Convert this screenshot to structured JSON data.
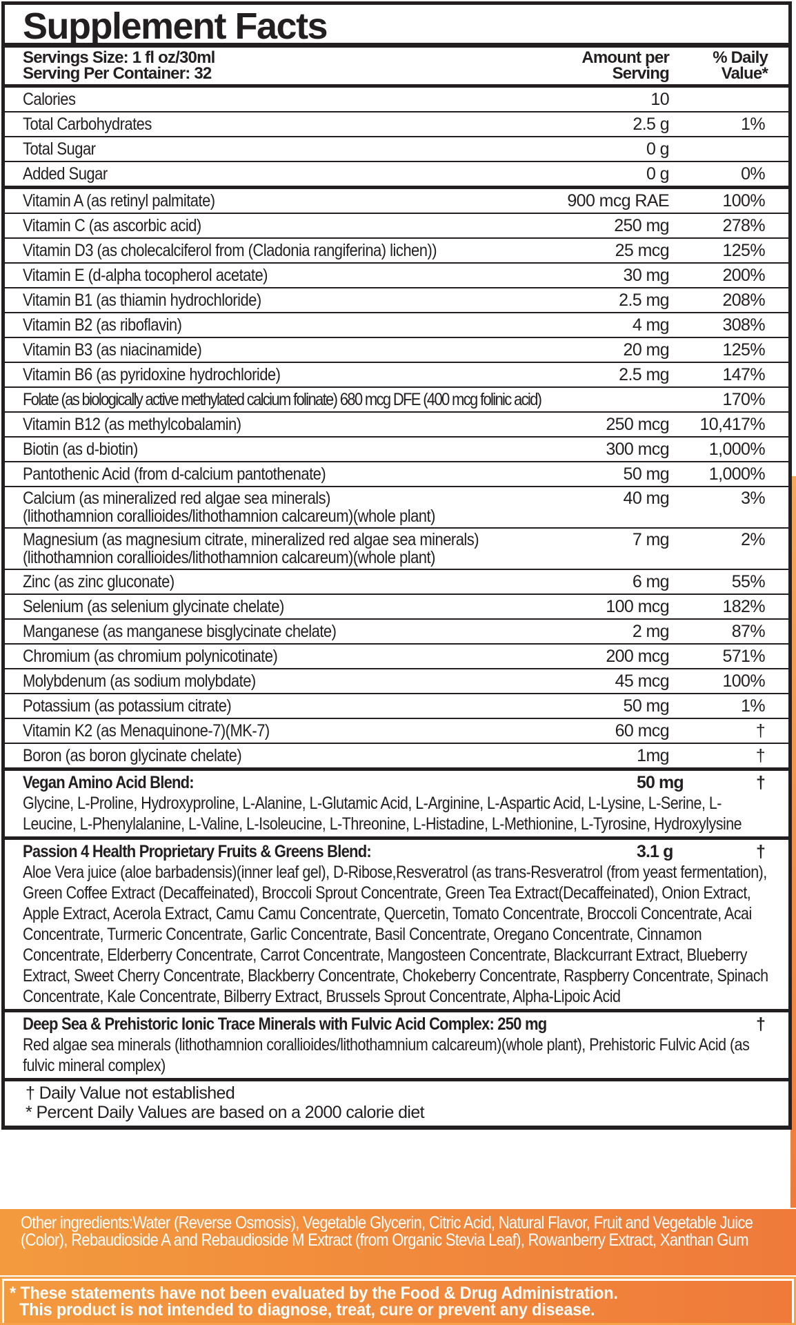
{
  "title": "Supplement Facts",
  "header": {
    "serving_size": "Servings Size: 1 fl oz/30ml",
    "servings_per_container": "Serving Per Container: 32",
    "amount_line1": "Amount per",
    "amount_line2": "Serving",
    "dv_line1": "% Daily",
    "dv_line2": "Value*"
  },
  "basic_rows": [
    {
      "name": "Calories",
      "amount": "10",
      "dv": ""
    },
    {
      "name": "Total Carbohydrates",
      "amount": "2.5 g",
      "dv": "1%"
    },
    {
      "name": "Total Sugar",
      "amount": "0 g",
      "dv": ""
    },
    {
      "name": "Added Sugar",
      "amount": "0 g",
      "dv": "0%"
    }
  ],
  "nutrient_rows": [
    {
      "name": "Vitamin A (as retinyl palmitate)",
      "amount": "900 mcg RAE",
      "dv": "100%"
    },
    {
      "name": "Vitamin C (as ascorbic acid)",
      "amount": "250 mg",
      "dv": "278%"
    },
    {
      "name": "Vitamin D3 (as cholecalciferol from (Cladonia rangiferina) lichen))",
      "amount": "25 mcg",
      "dv": "125%"
    },
    {
      "name": "Vitamin E (d-alpha tocopherol acetate)",
      "amount": "30 mg",
      "dv": "200%"
    },
    {
      "name": "Vitamin B1 (as thiamin hydrochloride)",
      "amount": "2.5 mg",
      "dv": "208%"
    },
    {
      "name": "Vitamin B2 (as riboflavin)",
      "amount": "4 mg",
      "dv": "308%"
    },
    {
      "name": "Vitamin B3 (as niacinamide)",
      "amount": "20 mg",
      "dv": "125%"
    },
    {
      "name": "Vitamin B6 (as pyridoxine hydrochloride)",
      "amount": "2.5 mg",
      "dv": "147%"
    },
    {
      "name": "Folate (as biologically active methylated calcium folinate) 680 mcg DFE (400 mcg folinic acid)",
      "amount": "",
      "dv": "170%",
      "tight": true
    },
    {
      "name": "Vitamin B12 (as methylcobalamin)",
      "amount": "250 mcg",
      "dv": "10,417%"
    },
    {
      "name": "Biotin (as d-biotin)",
      "amount": "300 mcg",
      "dv": "1,000%"
    },
    {
      "name": "Pantothenic Acid (from d-calcium pantothenate)",
      "amount": "50 mg",
      "dv": "1,000%"
    },
    {
      "name": "Calcium (as mineralized red algae sea minerals)",
      "name2": "(lithothamnion corallioides/lithothamnion calcareum)(whole plant)",
      "amount": "40 mg",
      "dv": "3%"
    },
    {
      "name": "Magnesium (as magnesium citrate, mineralized red algae sea minerals)",
      "name2": "(lithothamnion corallioides/lithothamnion calcareum)(whole plant)",
      "amount": "7 mg",
      "dv": "2%"
    },
    {
      "name": "Zinc (as zinc gluconate)",
      "amount": "6 mg",
      "dv": "55%"
    },
    {
      "name": "Selenium (as selenium glycinate chelate)",
      "amount": "100 mcg",
      "dv": "182%"
    },
    {
      "name": "Manganese (as manganese bisglycinate chelate)",
      "amount": "2 mg",
      "dv": "87%"
    },
    {
      "name": "Chromium (as chromium polynicotinate)",
      "amount": "200 mcg",
      "dv": "571%"
    },
    {
      "name": "Molybdenum (as sodium molybdate)",
      "amount": "45 mcg",
      "dv": "100%"
    },
    {
      "name": "Potassium (as potassium citrate)",
      "amount": "50 mg",
      "dv": "1%"
    },
    {
      "name": "Vitamin K2 (as Menaquinone-7)(MK-7)",
      "amount": "60 mcg",
      "dv": "†"
    },
    {
      "name": "Boron (as boron glycinate chelate)",
      "amount": "1mg",
      "dv": "†"
    }
  ],
  "blends": [
    {
      "name": "Vegan Amino Acid Blend:",
      "amount": "50 mg",
      "dv": "†",
      "ingredients": "Glycine, L-Proline, Hydroxyproline, L-Alanine, L-Glutamic Acid, L-Arginine, L-Aspartic Acid, L-Lysine, L-Serine, L-Leucine, L-Phenylalanine, L-Valine, L-Isoleucine, L-Threonine, L-Histadine, L-Methionine, L-Tyrosine, Hydroxylysine"
    },
    {
      "name": "Passion 4 Health Proprietary Fruits & Greens Blend:",
      "amount": "3.1 g",
      "dv": "†",
      "ingredients": "Aloe Vera juice (aloe barbadensis)(inner leaf gel), D-Ribose,Resveratrol (as trans-Resveratrol (from yeast fermentation), Green Coffee Extract (Decaffeinated), Broccoli Sprout Concentrate, Green Tea Extract(Decaffeinated), Onion Extract, Apple Extract, Acerola Extract, Camu Camu Concentrate, Quercetin, Tomato Concentrate, Broccoli Concentrate, Acai Concentrate, Turmeric Concentrate, Garlic Concentrate, Basil Concentrate, Oregano Concentrate, Cinnamon Concentrate, Elderberry Concentrate, Carrot Concentrate, Mangosteen Concentrate, Blackcurrant Extract, Blueberry Extract, Sweet Cherry Concentrate, Blackberry Concentrate, Chokeberry Concentrate, Raspberry Concentrate, Spinach Concentrate, Kale Concentrate, Bilberry Extract, Brussels Sprout Concentrate, Alpha-Lipoic Acid"
    },
    {
      "name": "Deep Sea & Prehistoric Ionic Trace Minerals with Fulvic Acid Complex: 250 mg",
      "amount": "",
      "dv": "†",
      "ingredients": "Red algae sea minerals (lithothamnion corallioides/lithothamnium calcareum)(whole plant), Prehistoric Fulvic Acid (as fulvic mineral complex)"
    }
  ],
  "footnotes": [
    "† Daily Value not established",
    "* Percent Daily Values are based on a 2000 calorie diet"
  ],
  "other_ingredients": "Other ingredients:Water (Reverse Osmosis), Vegetable Glycerin, Citric Acid, Natural Flavor, Fruit and Vegetable Juice (Color), Rebaudioside A and Rebaudioside M Extract (from Organic Stevia Leaf), Rowanberry Extract, Xanthan Gum",
  "disclaimer_line1": "* These statements have not been evaluated by the Food & Drug Administration.",
  "disclaimer_line2": "This product is not intended to diagnose, treat, cure or prevent any disease.",
  "colors": {
    "ink": "#231f20",
    "orange_start": "#f39a3e",
    "orange_end": "#ef7a3a"
  }
}
